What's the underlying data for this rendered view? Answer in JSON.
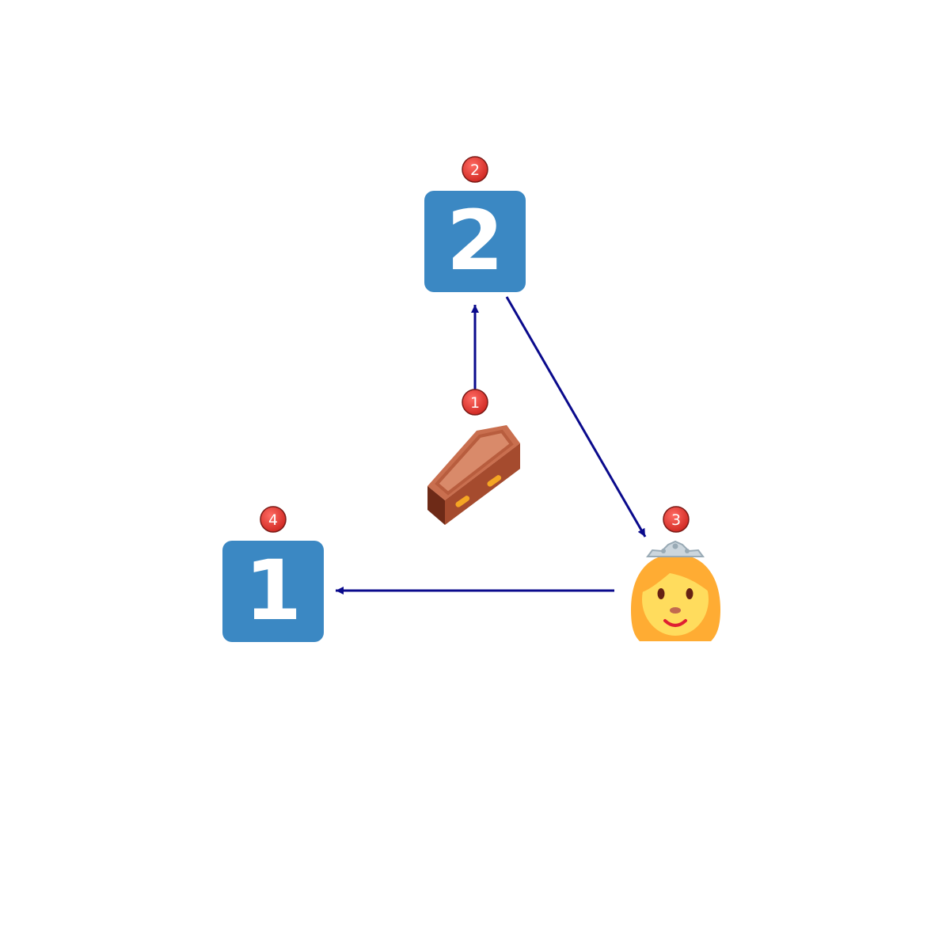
{
  "diagram": {
    "colors": {
      "edge": "#0a0a8c",
      "keycap": "#3b88c3",
      "badge": "#e8413a",
      "badge_text": "#ffffff"
    },
    "nodes": [
      {
        "id": "coffin",
        "icon": "coffin-icon",
        "badge": "1"
      },
      {
        "id": "keycap-2",
        "icon": "keycap-2-icon",
        "label": "2",
        "badge": "2"
      },
      {
        "id": "princess",
        "icon": "princess-icon",
        "badge": "3"
      },
      {
        "id": "keycap-1",
        "icon": "keycap-1-icon",
        "label": "1",
        "badge": "4"
      }
    ],
    "edges": [
      {
        "from": "coffin",
        "to": "keycap-2"
      },
      {
        "from": "keycap-2",
        "to": "princess"
      },
      {
        "from": "princess",
        "to": "keycap-1"
      }
    ]
  }
}
